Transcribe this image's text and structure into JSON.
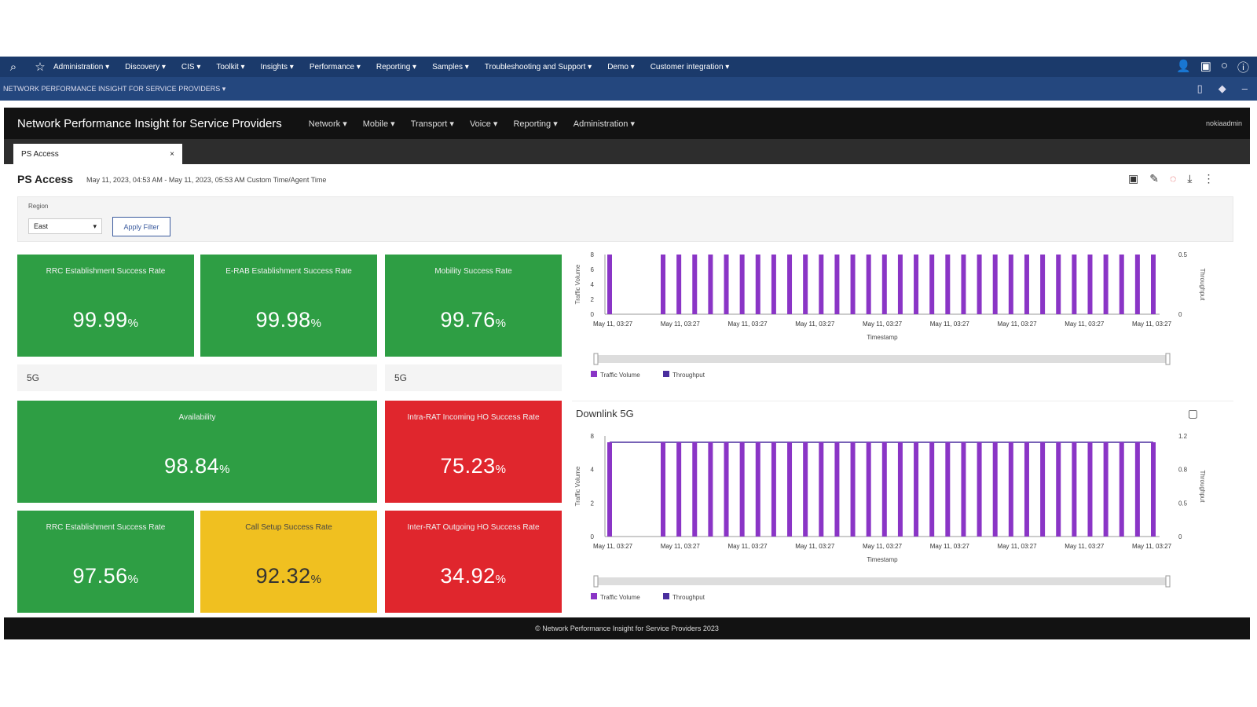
{
  "topnav": {
    "items": [
      "Administration",
      "Discovery",
      "CIS",
      "Toolkit",
      "Insights",
      "Performance",
      "Reporting",
      "Samples",
      "Troubleshooting and Support",
      "Demo",
      "Customer integration"
    ]
  },
  "subbar": {
    "breadcrumb": "NETWORK PERFORMANCE INSIGHT FOR SERVICE PROVIDERS"
  },
  "app": {
    "title": "Network Performance Insight for Service Providers",
    "nav": [
      "Network",
      "Mobile",
      "Transport",
      "Voice",
      "Reporting",
      "Administration"
    ],
    "user": "nokiaadmin"
  },
  "tab": {
    "label": "PS Access",
    "close": "×"
  },
  "page": {
    "title": "PS Access",
    "subtitle": "May 11, 2023, 04:53 AM - May 11, 2023, 05:53 AM Custom Time/Agent Time"
  },
  "filter": {
    "label": "Region",
    "value": "East",
    "apply": "Apply Filter"
  },
  "kpis": [
    {
      "label": "RRC Establishment Success Rate",
      "value": "99.99",
      "unit": "%",
      "color": "#2e9e44"
    },
    {
      "label": "E-RAB Establishment Success Rate",
      "value": "99.98",
      "unit": "%",
      "color": "#2e9e44"
    },
    {
      "label": "Mobility Success Rate",
      "value": "99.76",
      "unit": "%",
      "color": "#2e9e44"
    },
    {
      "label": "Availability",
      "value": "98.84",
      "unit": "%",
      "color": "#2e9e44"
    },
    {
      "label": "Intra-RAT Incoming HO Success Rate",
      "value": "75.23",
      "unit": "%",
      "color": "#e0262d"
    },
    {
      "label": "RRC Establishment Success Rate",
      "value": "97.56",
      "unit": "%",
      "color": "#2e9e44"
    },
    {
      "label": "Call Setup Success Rate",
      "value": "92.32",
      "unit": "%",
      "color": "#f0c020"
    },
    {
      "label": "Inter-RAT Outgoing HO Success Rate",
      "value": "34.92",
      "unit": "%",
      "color": "#e0262d"
    }
  ],
  "sections": {
    "left": "5G",
    "right": "5G"
  },
  "footer": {
    "text": "© Network Performance Insight for Service Providers 2023"
  },
  "chart_data": [
    {
      "type": "bar",
      "title": "",
      "xlabel": "Timestamp",
      "ylabel": "Traffic Volume",
      "y2label": "Throughput",
      "ylim": [
        0,
        8
      ],
      "yticks": [
        "0",
        "2",
        "4",
        "6",
        "8"
      ],
      "y2ticks": [
        "0",
        "0.5"
      ],
      "xticks": [
        "May 11, 03:27",
        "May 11, 03:27",
        "May 11, 03:27",
        "May 11, 03:27",
        "May 11, 03:27",
        "May 11, 03:27",
        "May 11, 03:27",
        "May 11, 03:27",
        "May 11, 03:27"
      ],
      "legend": [
        "Traffic Volume",
        "Throughput"
      ],
      "series": [
        {
          "name": "Traffic Volume",
          "values": [
            8,
            8,
            8,
            8,
            8,
            8,
            8,
            8,
            8,
            8,
            8,
            8,
            8,
            8,
            8,
            8,
            8,
            8,
            8,
            8,
            8,
            8,
            8,
            8,
            8,
            8,
            8,
            8,
            8,
            8,
            8,
            8,
            8
          ]
        }
      ],
      "colors": [
        "#8a35c6",
        "#4a2e9e"
      ]
    },
    {
      "type": "bar",
      "title": "Downlink 5G",
      "xlabel": "Timestamp",
      "ylabel": "Traffic Volume",
      "y2label": "Throughput",
      "ylim": [
        0,
        8
      ],
      "yticks": [
        "0",
        "2",
        "4",
        "8"
      ],
      "y2ticks": [
        "0",
        "0.5",
        "0.8",
        "1.2"
      ],
      "xticks": [
        "May 11, 03:27",
        "May 11, 03:27",
        "May 11, 03:27",
        "May 11, 03:27",
        "May 11, 03:27",
        "May 11, 03:27",
        "May 11, 03:27",
        "May 11, 03:27",
        "May 11, 03:27"
      ],
      "legend": [
        "Traffic Volume",
        "Throughput"
      ],
      "series": [
        {
          "name": "Traffic Volume",
          "values": [
            7.5,
            7.5,
            7.5,
            7.5,
            7.5,
            7.5,
            7.5,
            7.5,
            7.5,
            7.5,
            7.5,
            7.5,
            7.5,
            7.5,
            7.5,
            7.5,
            7.5,
            7.5,
            7.5,
            7.5,
            7.5,
            7.5,
            7.5,
            7.5,
            7.5,
            7.5,
            7.5,
            7.5,
            7.5,
            7.5,
            7.5,
            7.5,
            7.5
          ]
        }
      ],
      "colors": [
        "#8a35c6",
        "#4a2e9e"
      ]
    }
  ]
}
